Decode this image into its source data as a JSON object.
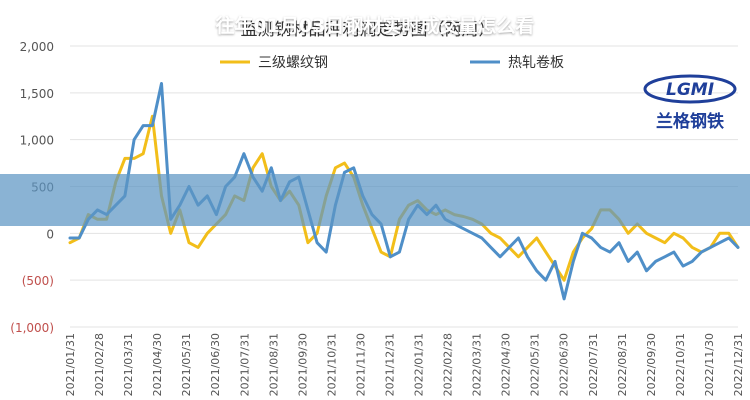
{
  "banner": {
    "text": "往年01月03日钢材实时成交量怎么看"
  },
  "logo": {
    "text": "兰格钢铁",
    "mark": "LGMI"
  },
  "colors": {
    "rebar": "#F2BE1A",
    "hotcoil": "#4F8FC8",
    "negative_tick": "#C0504D",
    "axis_tick": "#555555",
    "grid": "#E3E3E3",
    "banner": "#5D96C3",
    "logo": "#1F3F9A"
  },
  "chart_data": {
    "type": "line",
    "title": "监测钢材品种利润走势图（两周）",
    "xlabel": "",
    "ylabel": "",
    "ylim": [
      -1000,
      2000
    ],
    "y_ticks": [
      2000,
      1500,
      1000,
      500,
      0,
      -500,
      -1000
    ],
    "y_tick_labels": [
      "2,000",
      "1,500",
      "1,000",
      "500",
      "0",
      "(500)",
      "(1,000)"
    ],
    "grid": "horizontal",
    "legend": "top",
    "x_tick_labels": [
      "2021/01/31",
      "2021/02/28",
      "2021/03/31",
      "2021/04/30",
      "2021/05/31",
      "2021/06/30",
      "2021/07/31",
      "2021/08/31",
      "2021/09/30",
      "2021/10/31",
      "2021/11/30",
      "2021/12/31",
      "2022/01/31",
      "2022/02/28",
      "2022/03/31",
      "2022/04/30",
      "2022/05/31",
      "2022/06/30",
      "2022/07/31",
      "2022/08/31",
      "2022/09/30",
      "2022/10/31",
      "2022/11/30",
      "2022/12/31"
    ],
    "series": [
      {
        "name": "三级螺纹钢",
        "values": [
          -100,
          -50,
          200,
          150,
          150,
          550,
          800,
          800,
          850,
          1250,
          400,
          0,
          250,
          -100,
          -150,
          0,
          100,
          200,
          400,
          350,
          700,
          850,
          500,
          350,
          450,
          300,
          -100,
          0,
          400,
          700,
          750,
          600,
          300,
          50,
          -200,
          -250,
          150,
          300,
          350,
          250,
          200,
          250,
          200,
          180,
          150,
          100,
          0,
          -50,
          -150,
          -250,
          -150,
          -50,
          -200,
          -350,
          -500,
          -200,
          -50,
          50,
          250,
          250,
          150,
          0,
          100,
          0,
          -50,
          -100,
          0,
          -50,
          -150,
          -200,
          -150,
          0,
          0,
          -150
        ]
      },
      {
        "name": "热轧卷板",
        "values": [
          -50,
          -50,
          150,
          250,
          200,
          300,
          400,
          1000,
          1150,
          1150,
          1600,
          150,
          300,
          500,
          300,
          400,
          200,
          500,
          600,
          850,
          600,
          450,
          700,
          350,
          550,
          600,
          250,
          -100,
          -200,
          300,
          650,
          700,
          400,
          200,
          100,
          -250,
          -200,
          150,
          300,
          200,
          300,
          150,
          100,
          50,
          0,
          -50,
          -150,
          -250,
          -150,
          -50,
          -250,
          -400,
          -500,
          -300,
          -700,
          -300,
          0,
          -50,
          -150,
          -200,
          -100,
          -300,
          -200,
          -400,
          -300,
          -250,
          -200,
          -350,
          -300,
          -200,
          -150,
          -100,
          -50,
          -150
        ]
      }
    ]
  }
}
